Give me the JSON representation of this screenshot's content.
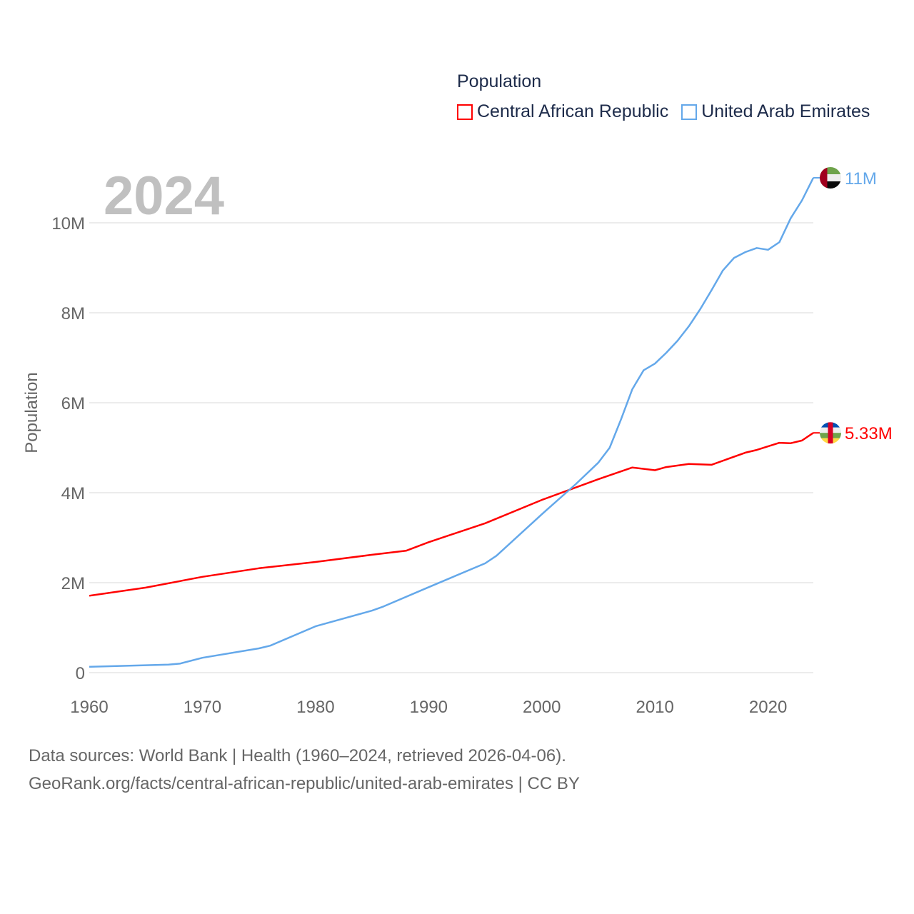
{
  "chart_data": {
    "type": "line",
    "title": "Population",
    "year_label": "2024",
    "ylabel": "Population",
    "xlabel": "",
    "xlim": [
      1960,
      2024
    ],
    "ylim": [
      0,
      11000000
    ],
    "x_ticks": [
      "1960",
      "1970",
      "1980",
      "1990",
      "2000",
      "2010",
      "2020"
    ],
    "y_ticks": [
      {
        "v": 0,
        "label": "0"
      },
      {
        "v": 2000000,
        "label": "2M"
      },
      {
        "v": 4000000,
        "label": "4M"
      },
      {
        "v": 6000000,
        "label": "6M"
      },
      {
        "v": 8000000,
        "label": "8M"
      },
      {
        "v": 10000000,
        "label": "10M"
      }
    ],
    "grid": true,
    "legend_position": "top-right",
    "series": [
      {
        "name": "Central African Republic",
        "color": "#ff0000",
        "end_label": "5.33M",
        "flag": "central-african-republic",
        "points": [
          [
            1960,
            1.71
          ],
          [
            1965,
            1.89
          ],
          [
            1970,
            2.13
          ],
          [
            1975,
            2.32
          ],
          [
            1980,
            2.46
          ],
          [
            1985,
            2.62
          ],
          [
            1988,
            2.71
          ],
          [
            1990,
            2.9
          ],
          [
            1995,
            3.32
          ],
          [
            2000,
            3.84
          ],
          [
            2005,
            4.3
          ],
          [
            2008,
            4.56
          ],
          [
            2010,
            4.5
          ],
          [
            2011,
            4.57
          ],
          [
            2013,
            4.64
          ],
          [
            2015,
            4.62
          ],
          [
            2018,
            4.89
          ],
          [
            2019,
            4.95
          ],
          [
            2021,
            5.11
          ],
          [
            2022,
            5.1
          ],
          [
            2023,
            5.16
          ],
          [
            2024,
            5.33
          ]
        ]
      },
      {
        "name": "United Arab Emirates",
        "color": "#64a8ea",
        "end_label": "11M",
        "flag": "united-arab-emirates",
        "points": [
          [
            1960,
            0.13
          ],
          [
            1967,
            0.18
          ],
          [
            1968,
            0.2
          ],
          [
            1970,
            0.33
          ],
          [
            1975,
            0.54
          ],
          [
            1976,
            0.6
          ],
          [
            1980,
            1.03
          ],
          [
            1981,
            1.1
          ],
          [
            1985,
            1.38
          ],
          [
            1986,
            1.47
          ],
          [
            1990,
            1.9
          ],
          [
            1995,
            2.43
          ],
          [
            1996,
            2.6
          ],
          [
            2000,
            3.52
          ],
          [
            2003,
            4.19
          ],
          [
            2005,
            4.67
          ],
          [
            2006,
            5.0
          ],
          [
            2007,
            5.63
          ],
          [
            2008,
            6.3
          ],
          [
            2009,
            6.72
          ],
          [
            2010,
            6.87
          ],
          [
            2011,
            7.11
          ],
          [
            2012,
            7.38
          ],
          [
            2013,
            7.7
          ],
          [
            2014,
            8.08
          ],
          [
            2015,
            8.5
          ],
          [
            2016,
            8.94
          ],
          [
            2017,
            9.22
          ],
          [
            2018,
            9.35
          ],
          [
            2019,
            9.44
          ],
          [
            2020,
            9.4
          ],
          [
            2021,
            9.57
          ],
          [
            2022,
            10.1
          ],
          [
            2023,
            10.5
          ],
          [
            2024,
            11.0
          ]
        ]
      }
    ]
  },
  "footer": {
    "line1": "Data sources: World Bank | Health (1960–2024, retrieved 2026-04-06).",
    "line2": "GeoRank.org/facts/central-african-republic/united-arab-emirates | CC BY"
  }
}
